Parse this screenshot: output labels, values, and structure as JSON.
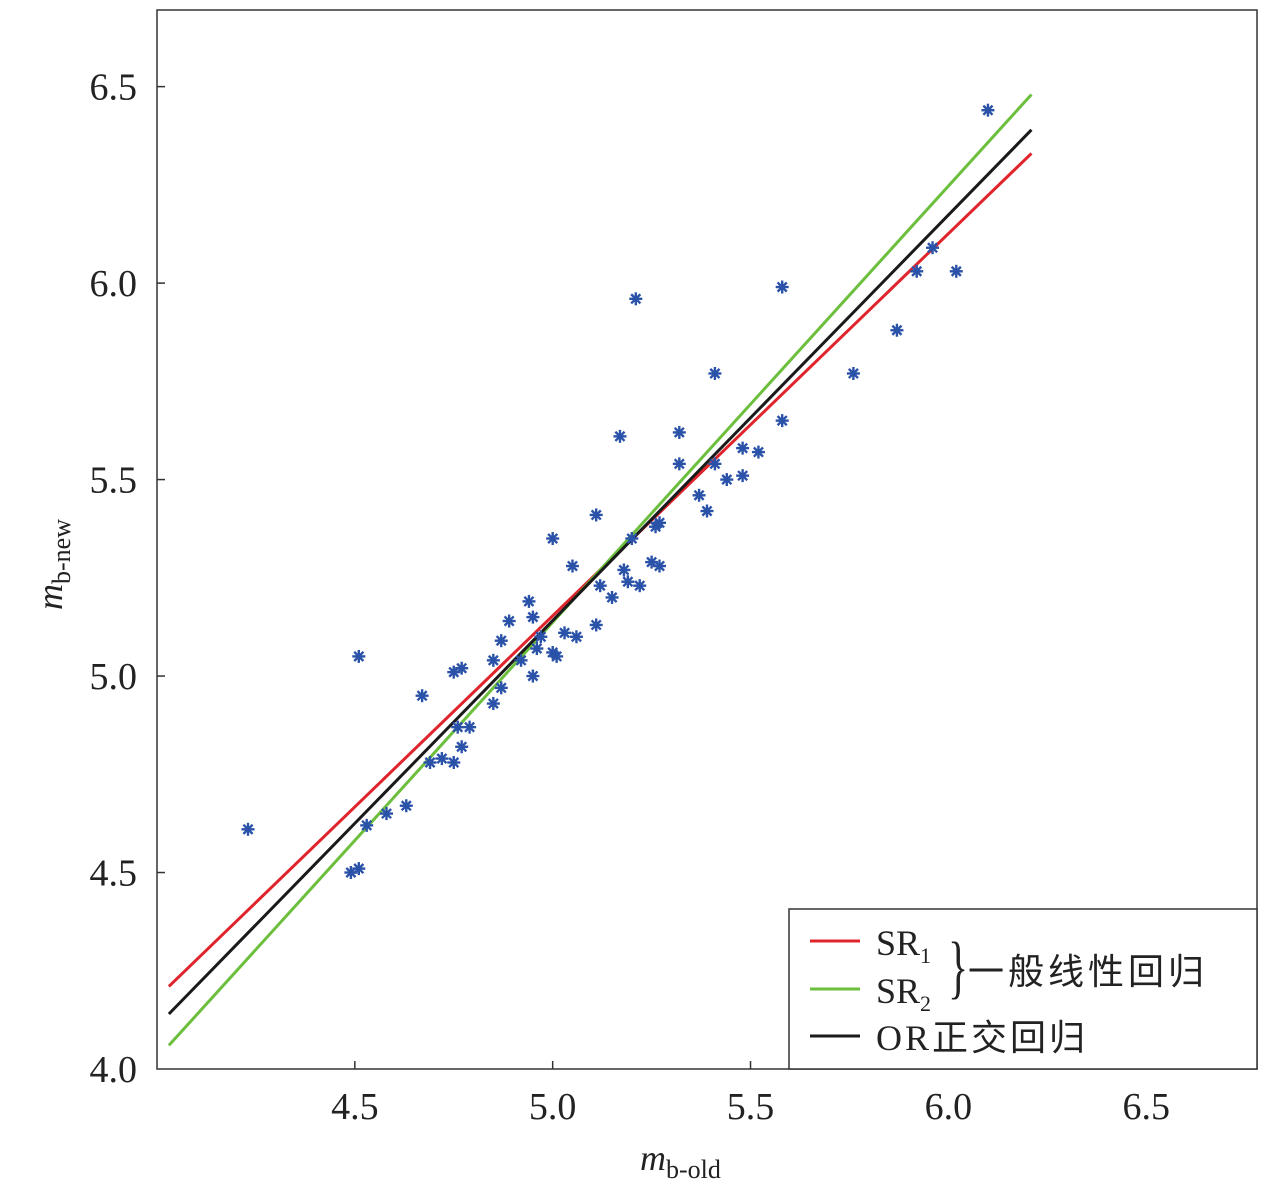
{
  "chart_data": {
    "type": "scatter",
    "title": "",
    "xlabel": {
      "main": "m",
      "sub": "b-old"
    },
    "ylabel": {
      "main": "m",
      "sub": "b-new"
    },
    "xlim": [
      4.0,
      6.78
    ],
    "ylim": [
      4.0,
      6.695
    ],
    "xticks": [
      "4.5",
      "5.0",
      "5.5",
      "6.0",
      "6.5"
    ],
    "xtick_values": [
      4.5,
      5.0,
      5.5,
      6.0,
      6.5
    ],
    "yticks": [
      "4.0",
      "4.5",
      "5.0",
      "5.5",
      "6.0",
      "6.5"
    ],
    "ytick_values": [
      4.0,
      4.5,
      5.0,
      5.5,
      6.0,
      6.5
    ],
    "grid": false,
    "legend_position": "bottom-right",
    "points": {
      "color": "#2a52a8",
      "x": [
        4.23,
        6.1,
        4.51,
        4.67,
        4.49,
        4.51,
        4.53,
        4.58,
        4.63,
        4.69,
        4.72,
        4.75,
        4.75,
        4.77,
        4.76,
        4.77,
        4.79,
        4.85,
        4.85,
        4.87,
        4.87,
        4.89,
        4.92,
        4.94,
        4.95,
        4.95,
        4.96,
        4.97,
        5.0,
        5.0,
        5.01,
        5.03,
        5.05,
        5.06,
        5.11,
        5.11,
        5.12,
        5.15,
        5.17,
        5.18,
        5.19,
        5.2,
        5.21,
        5.22,
        5.25,
        5.26,
        5.27,
        5.27,
        5.32,
        5.32,
        5.37,
        5.39,
        5.41,
        5.41,
        5.44,
        5.48,
        5.48,
        5.52,
        5.58,
        5.58,
        5.76,
        5.87,
        5.92,
        5.96,
        6.02
      ],
      "y": [
        4.61,
        6.44,
        5.05,
        4.95,
        4.5,
        4.51,
        4.62,
        4.65,
        4.67,
        4.78,
        4.79,
        4.78,
        5.01,
        5.02,
        4.87,
        4.82,
        4.87,
        5.04,
        4.93,
        4.97,
        5.09,
        5.14,
        5.04,
        5.19,
        5.15,
        5.0,
        5.07,
        5.1,
        5.35,
        5.06,
        5.05,
        5.11,
        5.28,
        5.1,
        5.41,
        5.13,
        5.23,
        5.2,
        5.61,
        5.27,
        5.24,
        5.35,
        5.96,
        5.23,
        5.29,
        5.38,
        5.28,
        5.39,
        5.62,
        5.54,
        5.46,
        5.42,
        5.77,
        5.54,
        5.5,
        5.58,
        5.51,
        5.57,
        5.65,
        5.99,
        5.77,
        5.88,
        6.03,
        6.09,
        6.03
      ]
    },
    "series": [
      {
        "name": "SR",
        "sub": "1",
        "color": "#e0242c",
        "x": [
          4.03,
          6.21
        ],
        "y": [
          4.21,
          6.33
        ]
      },
      {
        "name": "SR",
        "sub": "2",
        "color": "#6cbf3c",
        "x": [
          4.03,
          6.21
        ],
        "y": [
          4.06,
          6.48
        ]
      },
      {
        "name": "OR正交回归",
        "sub": "",
        "color": "#1a1a1a",
        "x": [
          4.03,
          6.21
        ],
        "y": [
          4.14,
          6.39
        ]
      }
    ],
    "legend_group_label": "一般线性回归"
  }
}
